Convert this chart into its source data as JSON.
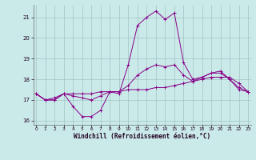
{
  "xlabel": "Windchill (Refroidissement éolien,°C)",
  "background_color": "#caeaea",
  "grid_color": "#99bbbb",
  "line_color": "#880088",
  "x_hours": [
    0,
    1,
    2,
    3,
    4,
    5,
    6,
    7,
    8,
    9,
    10,
    11,
    12,
    13,
    14,
    15,
    16,
    17,
    18,
    19,
    20,
    21,
    22,
    23
  ],
  "series1": [
    17.3,
    17.0,
    17.0,
    17.3,
    16.7,
    16.2,
    16.2,
    16.5,
    17.4,
    17.3,
    18.7,
    20.6,
    21.0,
    21.3,
    20.9,
    21.2,
    18.8,
    18.0,
    18.1,
    18.3,
    18.4,
    18.0,
    17.5,
    17.4
  ],
  "series2": [
    17.3,
    17.0,
    17.1,
    17.3,
    17.3,
    17.3,
    17.3,
    17.4,
    17.4,
    17.4,
    17.5,
    17.5,
    17.5,
    17.6,
    17.6,
    17.7,
    17.8,
    17.9,
    18.0,
    18.1,
    18.1,
    18.1,
    17.8,
    17.4
  ],
  "series3": [
    17.3,
    17.0,
    17.0,
    17.3,
    17.2,
    17.1,
    17.0,
    17.2,
    17.4,
    17.4,
    17.7,
    18.2,
    18.5,
    18.7,
    18.6,
    18.7,
    18.2,
    17.9,
    18.1,
    18.3,
    18.3,
    18.0,
    17.6,
    17.4
  ],
  "ylim": [
    15.8,
    21.6
  ],
  "yticks": [
    16,
    17,
    18,
    19,
    20,
    21
  ],
  "xtick_labels": [
    "0",
    "1",
    "2",
    "3",
    "4",
    "5",
    "6",
    "7",
    "8",
    "9",
    "10",
    "11",
    "12",
    "13",
    "14",
    "15",
    "16",
    "17",
    "18",
    "19",
    "20",
    "21",
    "22",
    "23"
  ]
}
